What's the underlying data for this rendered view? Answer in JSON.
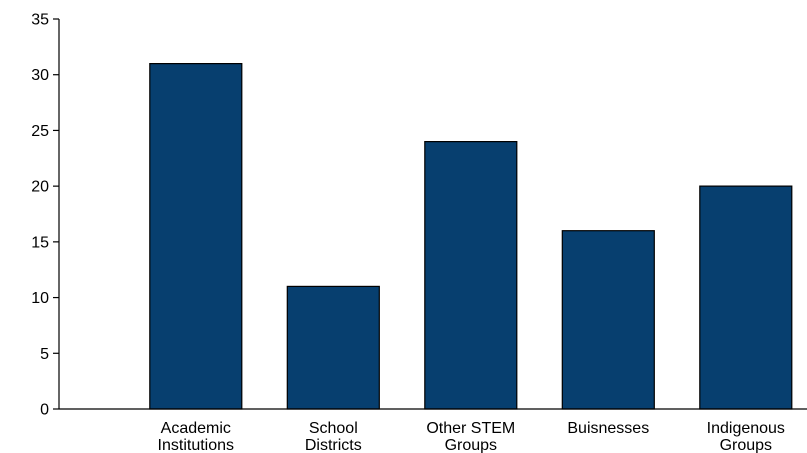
{
  "chart_data": {
    "type": "bar",
    "title": "",
    "xlabel": "",
    "ylabel": "",
    "categories": [
      [
        "Academic",
        "Institutions"
      ],
      [
        "School",
        "Districts"
      ],
      [
        "Other STEM",
        "Groups"
      ],
      [
        "Buisnesses"
      ],
      [
        "Indigenous",
        "Groups"
      ]
    ],
    "values": [
      31,
      11,
      24,
      16,
      20
    ],
    "ylim": [
      0,
      35
    ],
    "yticks": [
      "0",
      "5",
      "10",
      "15",
      "20",
      "25",
      "30",
      "35"
    ],
    "grid": false,
    "bar_color": "#073F6F"
  }
}
